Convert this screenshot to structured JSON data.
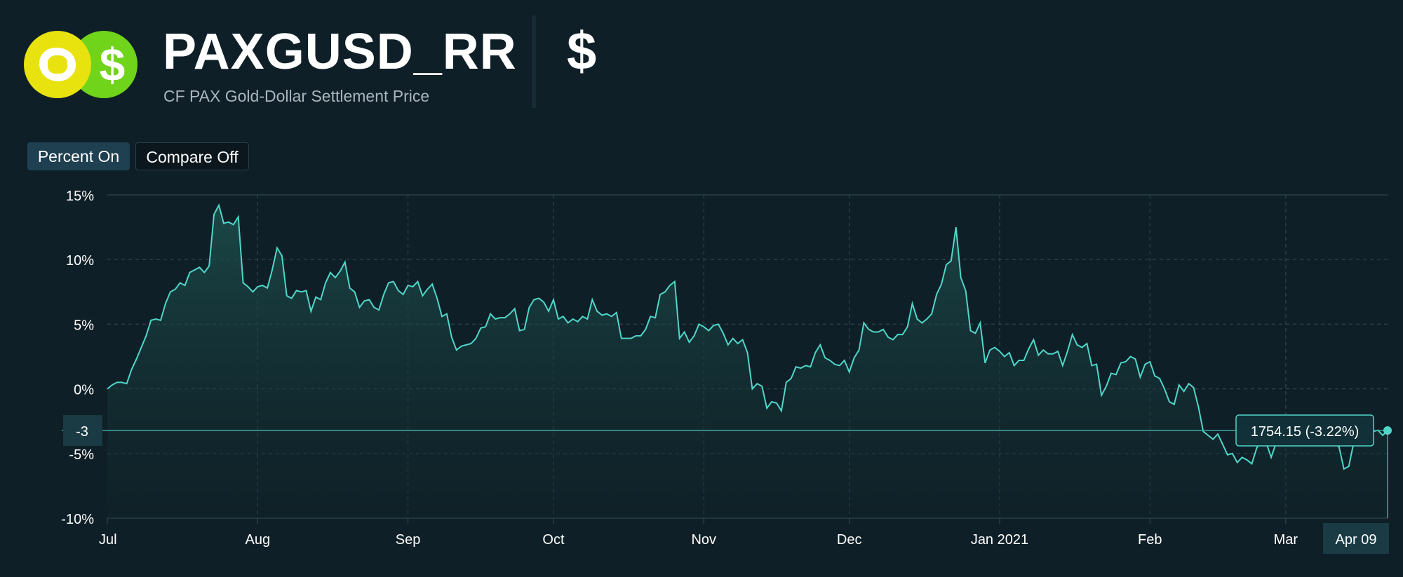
{
  "header": {
    "title": "PAXGUSD_RR",
    "subtitle": "CF PAX Gold-Dollar Settlement Price",
    "currency_symbol": "$",
    "logo_dollar": "$",
    "icons": [
      "gold-coin-icon",
      "dollar-coin-icon"
    ]
  },
  "controls": {
    "percent_label": "Percent On",
    "compare_label": "Compare Off"
  },
  "crosshair": {
    "y_label": "-3",
    "x_label": "Apr 09",
    "value_label": "1754.15 (-3.22%)",
    "value": -3.22
  },
  "colors": {
    "background": "#0f1f27",
    "line": "#4fd6c8",
    "area_top": "#1d4a48",
    "grid": "#2d4650",
    "label_box": "#1a3a44"
  },
  "chart_data": {
    "type": "area",
    "title": "",
    "xlabel": "",
    "ylabel": "",
    "ylim": [
      -10,
      15
    ],
    "y_ticks": [
      {
        "value": 15,
        "label": "15%"
      },
      {
        "value": 10,
        "label": "10%"
      },
      {
        "value": 5,
        "label": "5%"
      },
      {
        "value": 0,
        "label": "0%"
      },
      {
        "value": -5,
        "label": "-5%"
      },
      {
        "value": -10,
        "label": "-10%"
      }
    ],
    "x_ticks": [
      {
        "index": 0,
        "label": "Jul"
      },
      {
        "index": 31,
        "label": "Aug"
      },
      {
        "index": 62,
        "label": "Sep"
      },
      {
        "index": 92,
        "label": "Oct"
      },
      {
        "index": 123,
        "label": "Nov"
      },
      {
        "index": 153,
        "label": "Dec"
      },
      {
        "index": 184,
        "label": "Jan 2021"
      },
      {
        "index": 215,
        "label": "Feb"
      },
      {
        "index": 243,
        "label": "Mar"
      }
    ],
    "grid": true,
    "series": [
      {
        "name": "PAXGUSD_RR",
        "values": [
          0,
          0.3,
          0.5,
          0.5,
          0.4,
          1.5,
          2.3,
          3.2,
          4.1,
          5.3,
          5.4,
          5.3,
          6.6,
          7.5,
          7.7,
          8.2,
          8.0,
          9.0,
          9.2,
          9.4,
          9.0,
          9.5,
          13.5,
          14.2,
          12.8,
          12.9,
          12.7,
          13.3,
          8.2,
          7.9,
          7.5,
          7.9,
          8.0,
          7.8,
          9.2,
          10.9,
          10.3,
          7.2,
          7.0,
          7.6,
          7.5,
          7.6,
          6.0,
          7.1,
          6.9,
          8.2,
          9.0,
          8.6,
          9.1,
          9.8,
          7.8,
          7.5,
          6.3,
          6.8,
          6.9,
          6.3,
          6.1,
          7.3,
          8.2,
          8.3,
          7.6,
          7.3,
          8.0,
          7.9,
          8.3,
          7.2,
          7.7,
          8.1,
          7.0,
          5.6,
          5.8,
          4.0,
          3.0,
          3.3,
          3.4,
          3.5,
          3.9,
          4.7,
          4.8,
          5.8,
          5.4,
          5.5,
          5.5,
          5.8,
          6.2,
          4.5,
          4.6,
          6.3,
          6.9,
          7.0,
          6.7,
          6.0,
          6.9,
          5.4,
          5.6,
          5.1,
          5.4,
          5.2,
          5.6,
          5.4,
          6.9,
          6.0,
          5.7,
          5.8,
          5.6,
          5.9,
          3.9,
          3.9,
          3.9,
          4.1,
          4.1,
          4.6,
          5.6,
          5.5,
          7.3,
          7.5,
          8.0,
          8.3,
          3.9,
          4.4,
          3.6,
          4.1,
          5.0,
          4.8,
          4.5,
          4.9,
          5.0,
          4.3,
          3.4,
          3.9,
          3.5,
          3.8,
          2.8,
          0.0,
          0.4,
          0.2,
          -1.5,
          -1.0,
          -1.1,
          -1.7,
          0.5,
          0.8,
          1.7,
          1.6,
          1.8,
          1.7,
          2.8,
          3.4,
          2.4,
          2.2,
          1.9,
          1.8,
          2.2,
          1.3,
          2.4,
          3.0,
          5.1,
          4.6,
          4.4,
          4.4,
          4.6,
          4.0,
          3.8,
          4.2,
          4.2,
          4.8,
          6.6,
          5.4,
          5.1,
          5.4,
          5.8,
          7.3,
          8.1,
          9.6,
          9.9,
          12.5,
          8.6,
          7.6,
          4.5,
          4.3,
          5.1,
          2.0,
          3.0,
          3.2,
          2.9,
          2.5,
          2.8,
          1.8,
          2.2,
          2.2,
          3.1,
          3.8,
          2.6,
          3.0,
          2.7,
          2.7,
          2.9,
          1.8,
          2.9,
          4.2,
          3.4,
          3.2,
          3.5,
          1.8,
          1.9,
          -0.5,
          0.2,
          1.2,
          1.1,
          2.0,
          2.1,
          2.5,
          2.3,
          0.9,
          1.9,
          2.1,
          1.0,
          0.8,
          0.0,
          -1.0,
          -1.2,
          0.3,
          -0.2,
          0.4,
          0.1,
          -1.4,
          -3.3,
          -3.6,
          -3.9,
          -3.5,
          -4.3,
          -5.1,
          -5.0,
          -5.7,
          -5.3,
          -5.5,
          -5.8,
          -4.6,
          -3.9,
          -4.2,
          -5.3,
          -4.2,
          -4.0,
          -3.8,
          -3.9,
          -3.5,
          -3.3,
          -3.5,
          -3.8,
          -4.0,
          -4.1,
          -3.7,
          -4.0,
          -4.2,
          -4.5,
          -6.2,
          -6.0,
          -4.2,
          -3.7,
          -3.4,
          -3.3,
          -3.3,
          -3.2,
          -3.6,
          -3.22
        ]
      }
    ]
  }
}
